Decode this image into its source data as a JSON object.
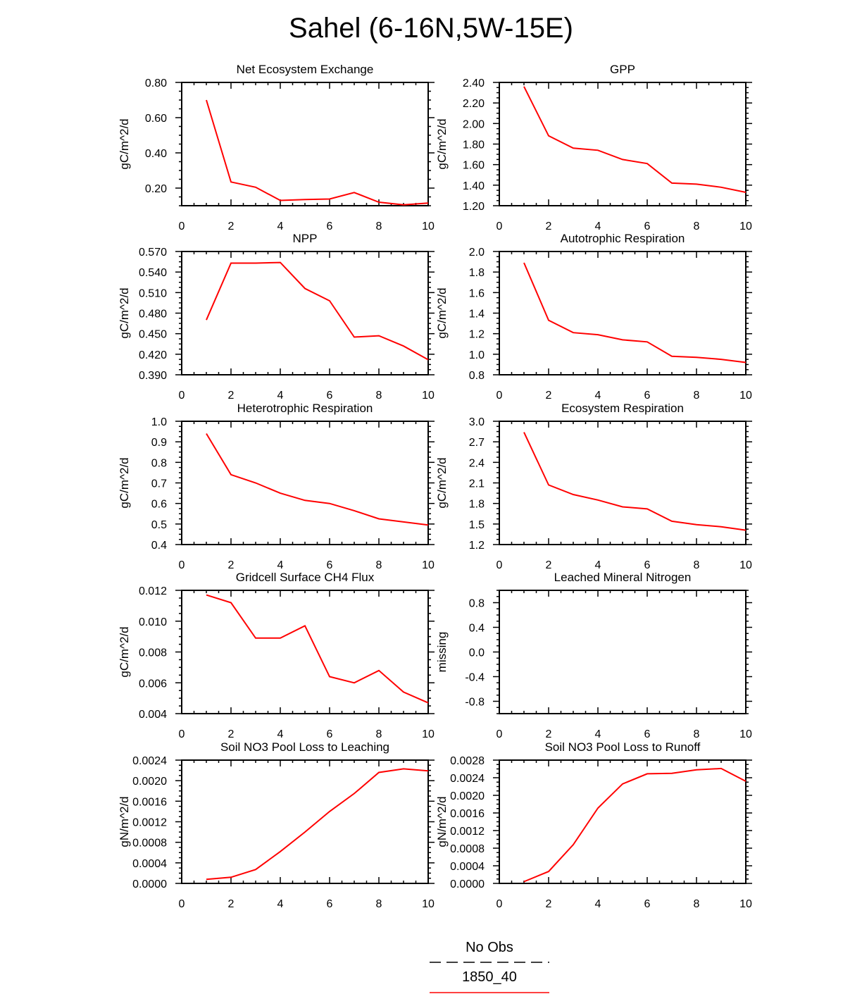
{
  "page": {
    "title": "Sahel (6-16N,5W-15E)"
  },
  "colors": {
    "model_line": "#ff0000",
    "obs_line": "#000000"
  },
  "legend": {
    "items": [
      {
        "label": "No Obs",
        "style": "dashed",
        "color": "#000000"
      },
      {
        "label": "1850_40",
        "style": "solid",
        "color": "#ff0000"
      }
    ]
  },
  "chart_data": [
    {
      "type": "line",
      "title": "Net Ecosystem Exchange",
      "ylabel": "gC/m^2/d",
      "xlim": [
        0,
        10
      ],
      "ylim": [
        0.1,
        0.8
      ],
      "xticks": [
        0,
        2,
        4,
        6,
        8,
        10
      ],
      "yticks": [
        0.2,
        0.4,
        0.6,
        0.8
      ],
      "ytick_labels": [
        "0.20",
        "0.40",
        "0.60",
        "0.80"
      ],
      "x": [
        1,
        2,
        3,
        4,
        5,
        6,
        7,
        8,
        9,
        10
      ],
      "series": [
        {
          "name": "1850_40",
          "values": [
            0.7,
            0.235,
            0.205,
            0.13,
            0.135,
            0.138,
            0.175,
            0.12,
            0.105,
            0.115
          ]
        }
      ]
    },
    {
      "type": "line",
      "title": "GPP",
      "ylabel": "gC/m^2/d",
      "xlim": [
        0,
        10
      ],
      "ylim": [
        1.2,
        2.4
      ],
      "xticks": [
        0,
        2,
        4,
        6,
        8,
        10
      ],
      "yticks": [
        1.2,
        1.4,
        1.6,
        1.8,
        2.0,
        2.2,
        2.4
      ],
      "ytick_labels": [
        "1.20",
        "1.40",
        "1.60",
        "1.80",
        "2.00",
        "2.20",
        "2.40"
      ],
      "x": [
        1,
        2,
        3,
        4,
        5,
        6,
        7,
        8,
        9,
        10
      ],
      "series": [
        {
          "name": "1850_40",
          "values": [
            2.36,
            1.88,
            1.76,
            1.74,
            1.65,
            1.61,
            1.42,
            1.41,
            1.38,
            1.33
          ]
        }
      ]
    },
    {
      "type": "line",
      "title": "NPP",
      "ylabel": "gC/m^2/d",
      "xlim": [
        0,
        10
      ],
      "ylim": [
        0.39,
        0.57
      ],
      "xticks": [
        0,
        2,
        4,
        6,
        8,
        10
      ],
      "yticks": [
        0.39,
        0.42,
        0.45,
        0.48,
        0.51,
        0.54,
        0.57
      ],
      "ytick_labels": [
        "0.390",
        "0.420",
        "0.450",
        "0.480",
        "0.510",
        "0.540",
        "0.570"
      ],
      "x": [
        1,
        2,
        3,
        4,
        5,
        6,
        7,
        8,
        9,
        10
      ],
      "series": [
        {
          "name": "1850_40",
          "values": [
            0.47,
            0.553,
            0.553,
            0.554,
            0.516,
            0.498,
            0.445,
            0.447,
            0.432,
            0.412
          ]
        }
      ]
    },
    {
      "type": "line",
      "title": "Autotrophic Respiration",
      "ylabel": "gC/m^2/d",
      "xlim": [
        0,
        10
      ],
      "ylim": [
        0.8,
        2.0
      ],
      "xticks": [
        0,
        2,
        4,
        6,
        8,
        10
      ],
      "yticks": [
        0.8,
        1.0,
        1.2,
        1.4,
        1.6,
        1.8,
        2.0
      ],
      "ytick_labels": [
        "0.8",
        "1.0",
        "1.2",
        "1.4",
        "1.6",
        "1.8",
        "2.0"
      ],
      "x": [
        1,
        2,
        3,
        4,
        5,
        6,
        7,
        8,
        9,
        10
      ],
      "series": [
        {
          "name": "1850_40",
          "values": [
            1.89,
            1.33,
            1.21,
            1.19,
            1.14,
            1.12,
            0.98,
            0.97,
            0.95,
            0.92
          ]
        }
      ]
    },
    {
      "type": "line",
      "title": "Heterotrophic Respiration",
      "ylabel": "gC/m^2/d",
      "xlim": [
        0,
        10
      ],
      "ylim": [
        0.4,
        1.0
      ],
      "xticks": [
        0,
        2,
        4,
        6,
        8,
        10
      ],
      "yticks": [
        0.4,
        0.5,
        0.6,
        0.7,
        0.8,
        0.9,
        1.0
      ],
      "ytick_labels": [
        "0.4",
        "0.5",
        "0.6",
        "0.7",
        "0.8",
        "0.9",
        "1.0"
      ],
      "x": [
        1,
        2,
        3,
        4,
        5,
        6,
        7,
        8,
        9,
        10
      ],
      "series": [
        {
          "name": "1850_40",
          "values": [
            0.94,
            0.74,
            0.7,
            0.65,
            0.615,
            0.6,
            0.565,
            0.525,
            0.51,
            0.495
          ]
        }
      ]
    },
    {
      "type": "line",
      "title": "Ecosystem Respiration",
      "ylabel": "gC/m^2/d",
      "xlim": [
        0,
        10
      ],
      "ylim": [
        1.2,
        3.0
      ],
      "xticks": [
        0,
        2,
        4,
        6,
        8,
        10
      ],
      "yticks": [
        1.2,
        1.5,
        1.8,
        2.1,
        2.4,
        2.7,
        3.0
      ],
      "ytick_labels": [
        "1.2",
        "1.5",
        "1.8",
        "2.1",
        "2.4",
        "2.7",
        "3.0"
      ],
      "x": [
        1,
        2,
        3,
        4,
        5,
        6,
        7,
        8,
        9,
        10
      ],
      "series": [
        {
          "name": "1850_40",
          "values": [
            2.84,
            2.07,
            1.93,
            1.85,
            1.75,
            1.72,
            1.54,
            1.49,
            1.46,
            1.41
          ]
        }
      ]
    },
    {
      "type": "line",
      "title": "Gridcell Surface CH4 Flux",
      "ylabel": "gC/m^2/d",
      "xlim": [
        0,
        10
      ],
      "ylim": [
        0.004,
        0.012
      ],
      "xticks": [
        0,
        2,
        4,
        6,
        8,
        10
      ],
      "yticks": [
        0.004,
        0.006,
        0.008,
        0.01,
        0.012
      ],
      "ytick_labels": [
        "0.004",
        "0.006",
        "0.008",
        "0.010",
        "0.012"
      ],
      "x": [
        1,
        2,
        3,
        4,
        5,
        6,
        7,
        8,
        9,
        10
      ],
      "series": [
        {
          "name": "1850_40",
          "values": [
            0.0117,
            0.0112,
            0.0089,
            0.0089,
            0.0097,
            0.0064,
            0.006,
            0.0068,
            0.0054,
            0.0047
          ]
        }
      ]
    },
    {
      "type": "line",
      "title": "Leached Mineral Nitrogen",
      "ylabel": "missing",
      "xlim": [
        0,
        10
      ],
      "ylim": [
        -1.0,
        1.0
      ],
      "xticks": [
        0,
        2,
        4,
        6,
        8,
        10
      ],
      "yticks": [
        -0.8,
        -0.4,
        0.0,
        0.4,
        0.8
      ],
      "ytick_labels": [
        "-0.8",
        "-0.4",
        "0.0",
        "0.4",
        "0.8"
      ],
      "x": [],
      "series": []
    },
    {
      "type": "line",
      "title": "Soil NO3 Pool Loss to Leaching",
      "ylabel": "gN/m^2/d",
      "xlim": [
        0,
        10
      ],
      "ylim": [
        0.0,
        0.0024
      ],
      "xticks": [
        0,
        2,
        4,
        6,
        8,
        10
      ],
      "yticks": [
        0.0,
        0.0004,
        0.0008,
        0.0012,
        0.0016,
        0.002,
        0.0024
      ],
      "ytick_labels": [
        "0.0000",
        "0.0004",
        "0.0008",
        "0.0012",
        "0.0016",
        "0.0020",
        "0.0024"
      ],
      "x": [
        1,
        2,
        3,
        4,
        5,
        6,
        7,
        8,
        9,
        10
      ],
      "series": [
        {
          "name": "1850_40",
          "values": [
            8e-05,
            0.00012,
            0.00027,
            0.00062,
            0.001,
            0.0014,
            0.00175,
            0.00216,
            0.00223,
            0.00219
          ]
        }
      ]
    },
    {
      "type": "line",
      "title": "Soil NO3 Pool Loss to Runoff",
      "ylabel": "gN/m^2/d",
      "xlim": [
        0,
        10
      ],
      "ylim": [
        0.0,
        0.0028
      ],
      "xticks": [
        0,
        2,
        4,
        6,
        8,
        10
      ],
      "yticks": [
        0.0,
        0.0004,
        0.0008,
        0.0012,
        0.0016,
        0.002,
        0.0024,
        0.0028
      ],
      "ytick_labels": [
        "0.0000",
        "0.0004",
        "0.0008",
        "0.0012",
        "0.0016",
        "0.0020",
        "0.0024",
        "0.0028"
      ],
      "x": [
        1,
        2,
        3,
        4,
        5,
        6,
        7,
        8,
        9,
        10
      ],
      "series": [
        {
          "name": "1850_40",
          "values": [
            4e-05,
            0.00027,
            0.00088,
            0.00171,
            0.00226,
            0.00249,
            0.0025,
            0.00258,
            0.00261,
            0.00232
          ]
        }
      ]
    }
  ]
}
